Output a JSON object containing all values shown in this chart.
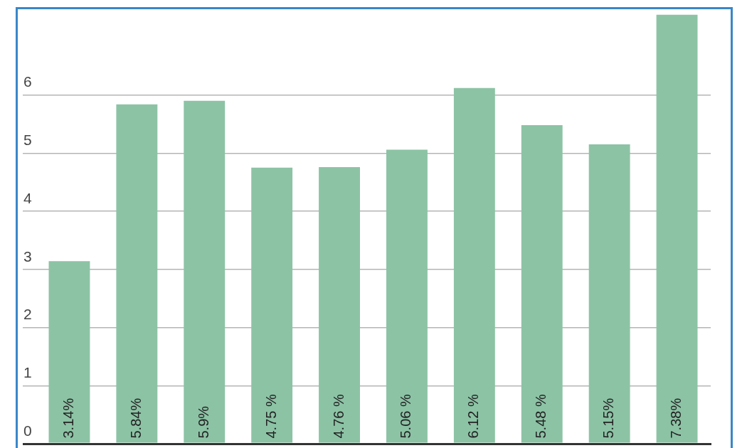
{
  "chart_data": {
    "type": "bar",
    "categories": [
      null,
      null,
      null,
      null,
      null,
      null,
      null,
      null,
      null,
      null
    ],
    "values": [
      3.14,
      5.84,
      5.9,
      4.75,
      4.76,
      5.06,
      6.12,
      5.48,
      5.15,
      7.38
    ],
    "value_labels": [
      "3.14%",
      "5.84%",
      "5.9%",
      "4.75 %",
      "4.76 %",
      "5.06 %",
      "6.12 %",
      "5.48 %",
      "5.15%",
      "7.38%"
    ],
    "color": "#8cc3a5",
    "ylim": [
      0,
      7.5
    ],
    "yticks": [
      0,
      1,
      2,
      3,
      4,
      5,
      6
    ],
    "grid": "y"
  }
}
